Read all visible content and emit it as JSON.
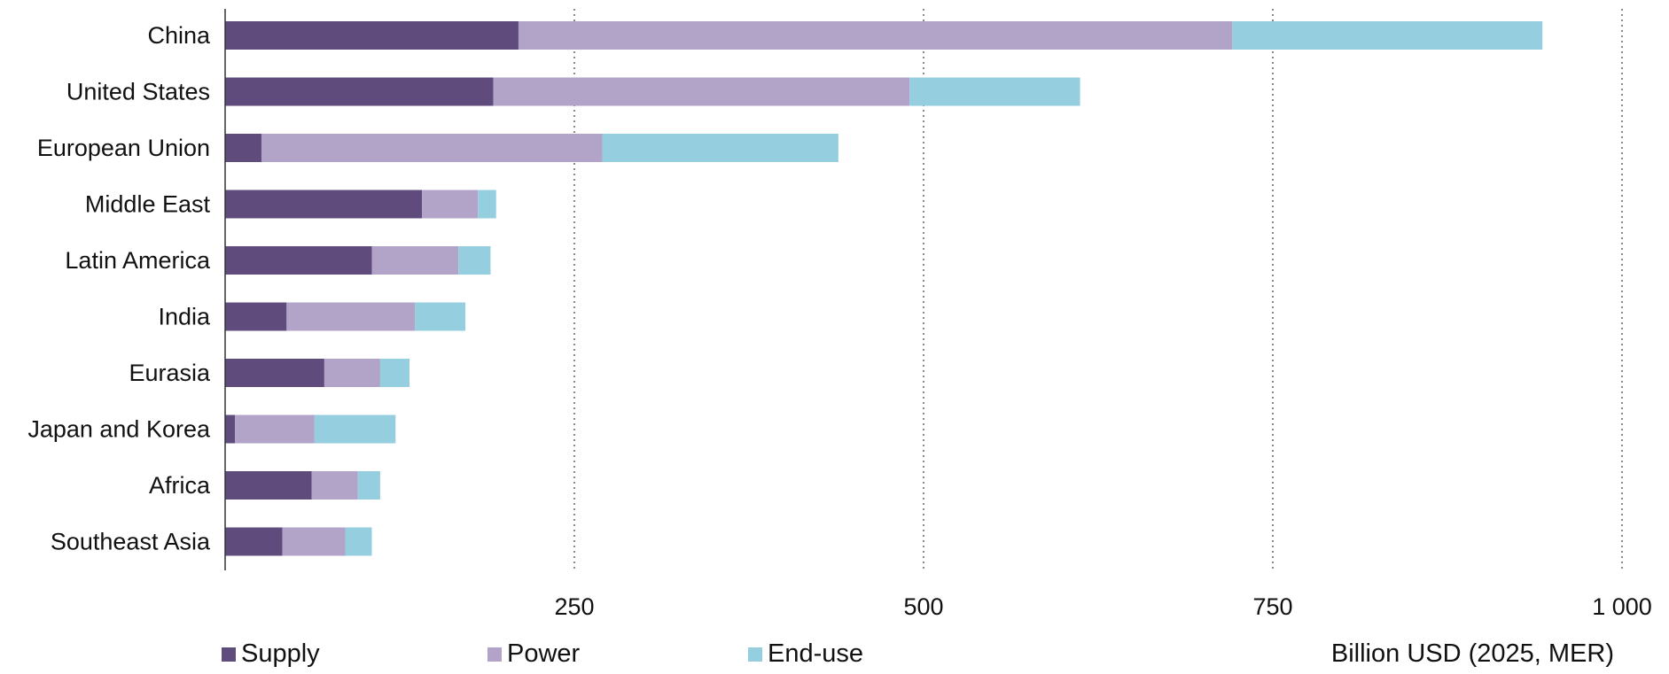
{
  "chart_data": {
    "type": "bar",
    "orientation": "horizontal",
    "stacked": true,
    "categories": [
      "China",
      "United States",
      "European Union",
      "Middle East",
      "Latin America",
      "India",
      "Eurasia",
      "Japan and Korea",
      "Africa",
      "Southeast Asia"
    ],
    "series": [
      {
        "name": "Supply",
        "color": "#5f4b7c",
        "values": [
          210,
          192,
          26,
          141,
          105,
          44,
          71,
          7,
          62,
          41
        ]
      },
      {
        "name": "Power",
        "color": "#b2a3c8",
        "values": [
          511,
          298,
          244,
          40,
          62,
          92,
          40,
          57,
          33,
          45
        ]
      },
      {
        "name": "End-use",
        "color": "#95cfdf",
        "values": [
          222,
          122,
          169,
          13,
          23,
          36,
          21,
          58,
          16,
          19
        ]
      }
    ],
    "xlim": [
      0,
      1000
    ],
    "xticks": [
      250,
      500,
      750,
      1000
    ],
    "xtick_labels": [
      "250",
      "500",
      "750",
      "1 000"
    ],
    "grid": "vertical dotted",
    "legend_position": "bottom-left",
    "unit_label": "Billion USD (2025, MER)"
  }
}
